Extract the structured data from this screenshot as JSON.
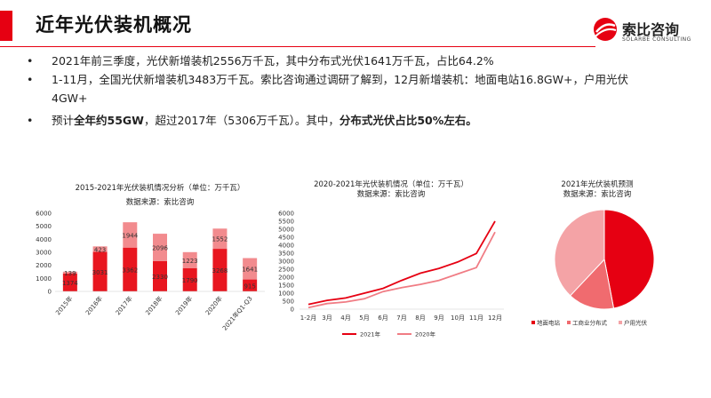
{
  "header": {
    "title": "近年光伏装机概况",
    "logo_cn": "索比咨询",
    "logo_en": "SOLARBE CONSULTING"
  },
  "bullets": [
    {
      "parts": [
        {
          "text": "2021年前三季度，光伏新增装机2556万千瓦，其中分布式光伏1641万千瓦，占比64.2%",
          "bold": false
        }
      ]
    },
    {
      "parts": [
        {
          "text": "1-11月，全国光伏新增装机3483万千瓦。索比咨询通过调研了解到，12月新增装机：地面电站16.8GW+，户用光伏4GW+",
          "bold": false
        }
      ]
    },
    {
      "parts": [
        {
          "text": "预计",
          "bold": false
        },
        {
          "text": "全年约55GW",
          "bold": true
        },
        {
          "text": "，超过2017年（5306万千瓦）。其中，",
          "bold": false
        },
        {
          "text": "分布式光伏占比50%左右。",
          "bold": true
        }
      ]
    }
  ],
  "colors": {
    "accent": "#e60012",
    "bar_bottom": "#e8161f",
    "bar_top": "#f28b8e",
    "line_2021": "#e60012",
    "line_2020": "#f07c84",
    "pie": [
      "#e60012",
      "#f06b6f",
      "#f4a3a6"
    ]
  },
  "chart_data": [
    {
      "type": "bar",
      "title": "2015-2021年光伏装机情况分析（单位：万千瓦）",
      "subtitle": "数据来源：索比咨询",
      "categories": [
        "2015年",
        "2016年",
        "2017年",
        "2018年",
        "2019年",
        "2020年",
        "2021年Q1-Q3"
      ],
      "series": [
        {
          "values": [
            1374,
            3031,
            3362,
            2330,
            1790,
            3268,
            915
          ]
        },
        {
          "values": [
            139,
            423,
            1944,
            2096,
            1223,
            1552,
            1641
          ]
        }
      ],
      "ylim": [
        0,
        6000
      ],
      "yticks": [
        0,
        1000,
        2000,
        3000,
        4000,
        5000,
        6000
      ]
    },
    {
      "type": "line",
      "title": "2020-2021年光伏装机情况（单位：万千瓦）",
      "subtitle": "数据来源：索比咨询",
      "x": [
        "1-2月",
        "3月",
        "4月",
        "5月",
        "6月",
        "7月",
        "8月",
        "9月",
        "10月",
        "11月",
        "12月"
      ],
      "series": [
        {
          "name": "2021年",
          "values": [
            300,
            550,
            700,
            1000,
            1300,
            1800,
            2250,
            2550,
            2950,
            3483,
            5500
          ]
        },
        {
          "name": "2020年",
          "values": [
            100,
            350,
            450,
            650,
            1100,
            1350,
            1550,
            1800,
            2200,
            2600,
            4820
          ]
        }
      ],
      "ylim": [
        0,
        6000
      ],
      "yticks": [
        0,
        500,
        1000,
        1500,
        2000,
        2500,
        3000,
        3500,
        4000,
        4500,
        5000,
        5500,
        6000
      ],
      "legend": "bottom"
    },
    {
      "type": "pie",
      "title": "2021年光伏装机预测",
      "subtitle": "数据来源：索比咨询",
      "labels": [
        "地面电站",
        "工商业分布式",
        "户用光伏"
      ],
      "values": [
        47,
        15,
        38
      ],
      "legend": "bottom"
    }
  ]
}
